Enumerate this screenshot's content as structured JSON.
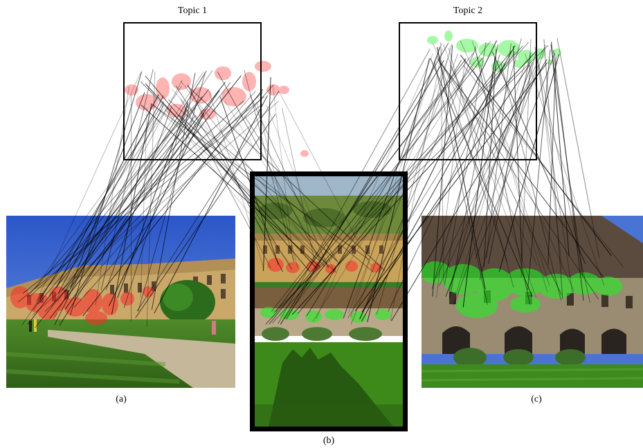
{
  "topics": {
    "topic1_title": "Topic 1",
    "topic2_title": "Topic 2"
  },
  "captions": {
    "a": "(a)",
    "b": "(b)",
    "c": "(c)"
  },
  "colors": {
    "topic1_blob": "#ff2a2a",
    "topic2_blob": "#22ee22",
    "link_line": "#000000"
  }
}
